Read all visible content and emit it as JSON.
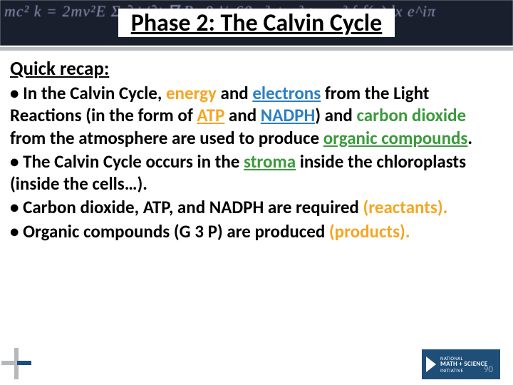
{
  "title": "Phase 2: The Calvin Cycle",
  "recap_label": "Quick recap:",
  "bullets": {
    "b1": {
      "t1": "• In the Calvin Cycle, ",
      "energy": "energy",
      "t2": " and ",
      "electrons": "electrons",
      "t3": " from the Light Reactions (in the form of ",
      "atp": "ATP",
      "t4": " and ",
      "nadph": "NADPH",
      "t5": ") and ",
      "co2": "carbon dioxide",
      "t6": " from the atmosphere are used to produce ",
      "organic": "organic compounds",
      "t7": "."
    },
    "b2": {
      "t1": "• The Calvin Cycle occurs in the ",
      "stroma": "stroma",
      "t2": " inside the chloroplasts (inside the cells…)."
    },
    "b3": {
      "t1": "• Carbon dioxide, ATP, and NADPH are required ",
      "reactants": "(reactants).",
      "t2": ""
    },
    "b4": {
      "t1": "• Organic compounds (G 3 P) are produced ",
      "products": "(products).",
      "t2": ""
    }
  },
  "logo": {
    "line1": "NATIONAL",
    "line2": "MATH + SCIENCE",
    "line3": "INITIATIVE"
  },
  "math_bg": "mc² k    = 2mv²E  Σ  ∂ψ/∂t ∇·B=0\n½ 60 x² + y² ≈ π r²  ∫ f(x)dx  e^iπ",
  "page_num": "90",
  "colors": {
    "header_bg": "#1a1f2e",
    "divider": "#b8bcbf",
    "navy": "#1f4e79",
    "orange": "#f5a623",
    "blue": "#2d7fc3",
    "green": "#3c9a3c"
  }
}
